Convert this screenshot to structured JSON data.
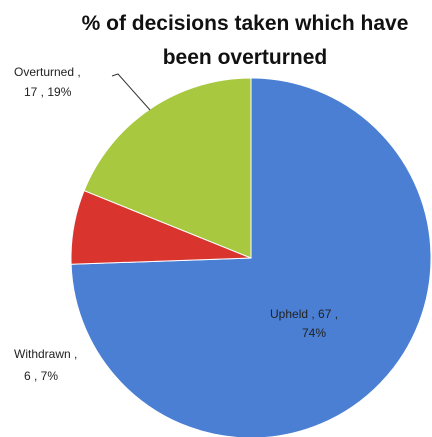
{
  "chart_data": {
    "type": "pie",
    "title": [
      "% of decisions taken which have",
      "been overturned"
    ],
    "categories": [
      "Upheld",
      "Withdrawn",
      "Overturned"
    ],
    "values": [
      67,
      6,
      17
    ],
    "value_labels": [
      [
        "Upheld ,  67 ,",
        "74%"
      ],
      [
        "Withdrawn ,",
        "6 , 7%"
      ],
      [
        "Overturned ,",
        "17 , 19%"
      ]
    ],
    "colors": [
      "#4a7fd3",
      "#d9342e",
      "#a8c840"
    ]
  }
}
